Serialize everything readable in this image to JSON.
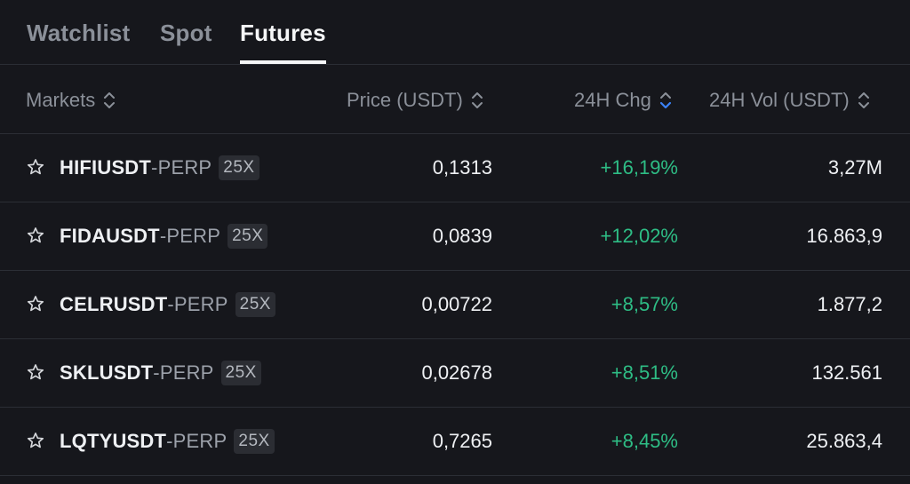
{
  "tabs": [
    {
      "label": "Watchlist",
      "active": false
    },
    {
      "label": "Spot",
      "active": false
    },
    {
      "label": "Futures",
      "active": true
    }
  ],
  "columns": {
    "markets": "Markets",
    "price": "Price (USDT)",
    "change": "24H Chg",
    "volume": "24H Vol (USDT)"
  },
  "sort": {
    "active_column": "change",
    "active_color": "#3b82f6",
    "inactive_color": "#8b9099"
  },
  "colors": {
    "positive": "#2ebd85",
    "background": "#16171c",
    "divider": "#2b2e35"
  },
  "rows": [
    {
      "base": "HIFIUSDT",
      "suffix": "-PERP",
      "leverage": "25X",
      "price": "0,1313",
      "change": "+16,19%",
      "volume": "3,27M"
    },
    {
      "base": "FIDAUSDT",
      "suffix": "-PERP",
      "leverage": "25X",
      "price": "0,0839",
      "change": "+12,02%",
      "volume": "16.863,9"
    },
    {
      "base": "CELRUSDT",
      "suffix": "-PERP",
      "leverage": "25X",
      "price": "0,00722",
      "change": "+8,57%",
      "volume": "1.877,2"
    },
    {
      "base": "SKLUSDT",
      "suffix": "-PERP",
      "leverage": "25X",
      "price": "0,02678",
      "change": "+8,51%",
      "volume": "132.561"
    },
    {
      "base": "LQTYUSDT",
      "suffix": "-PERP",
      "leverage": "25X",
      "price": "0,7265",
      "change": "+8,45%",
      "volume": "25.863,4"
    }
  ]
}
